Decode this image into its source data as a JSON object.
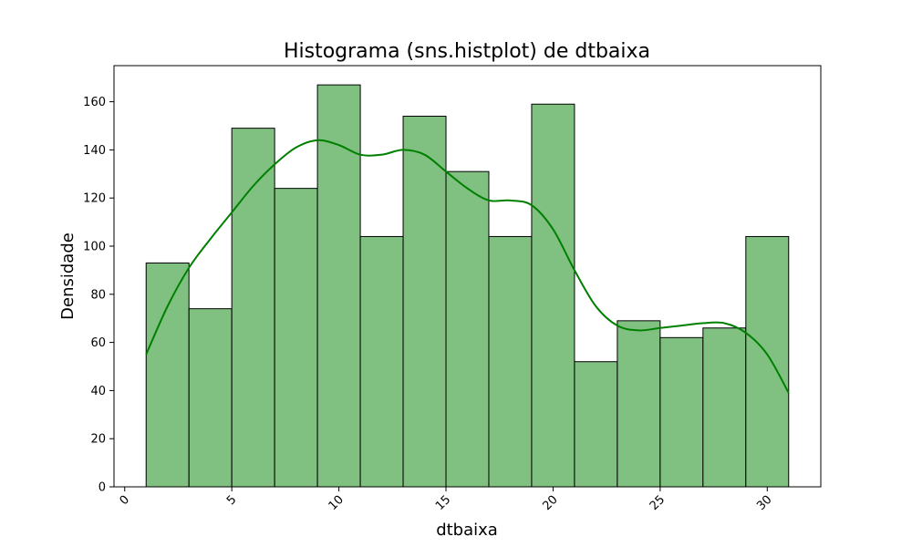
{
  "chart_data": {
    "type": "bar",
    "subtype": "histogram",
    "title": "Histograma (sns.histplot) de dtbaixa",
    "xlabel": "dtbaixa",
    "ylabel": "Densidade",
    "xlim": [
      -0.5,
      32.5
    ],
    "ylim": [
      0,
      175
    ],
    "grid": false,
    "legend": "none",
    "x_tick_rotation_deg": 45,
    "xticks": [
      0,
      5,
      10,
      15,
      20,
      25,
      30
    ],
    "xtick_labels": [
      "0",
      "5",
      "10",
      "15",
      "20",
      "25",
      "30"
    ],
    "yticks": [
      0,
      20,
      40,
      60,
      80,
      100,
      120,
      140,
      160
    ],
    "ytick_labels": [
      "0",
      "20",
      "40",
      "60",
      "80",
      "100",
      "120",
      "140",
      "160"
    ],
    "bin_edges": [
      1,
      3,
      5,
      7,
      9,
      11,
      13,
      15,
      17,
      19,
      21,
      23,
      25,
      27,
      29,
      31
    ],
    "values": [
      93,
      74,
      149,
      124,
      167,
      104,
      154,
      131,
      104,
      159,
      52,
      69,
      62,
      66,
      104
    ],
    "kde": {
      "x": [
        1,
        2,
        3,
        4,
        5,
        6,
        7,
        8,
        9,
        10,
        11,
        12,
        13,
        14,
        15,
        16,
        17,
        18,
        19,
        20,
        21,
        22,
        23,
        24,
        25,
        26,
        27,
        28,
        29,
        30,
        31
      ],
      "y": [
        55,
        75,
        91,
        103,
        114,
        125,
        134,
        141,
        144,
        142,
        138,
        138,
        140,
        138,
        131,
        124,
        119,
        119,
        117,
        107,
        90,
        75,
        67,
        65,
        66,
        67,
        68,
        68,
        64,
        55,
        39
      ]
    },
    "colors": {
      "bar_fill": "#80c080",
      "bar_edge": "#000000",
      "kde_line": "#008000"
    }
  }
}
